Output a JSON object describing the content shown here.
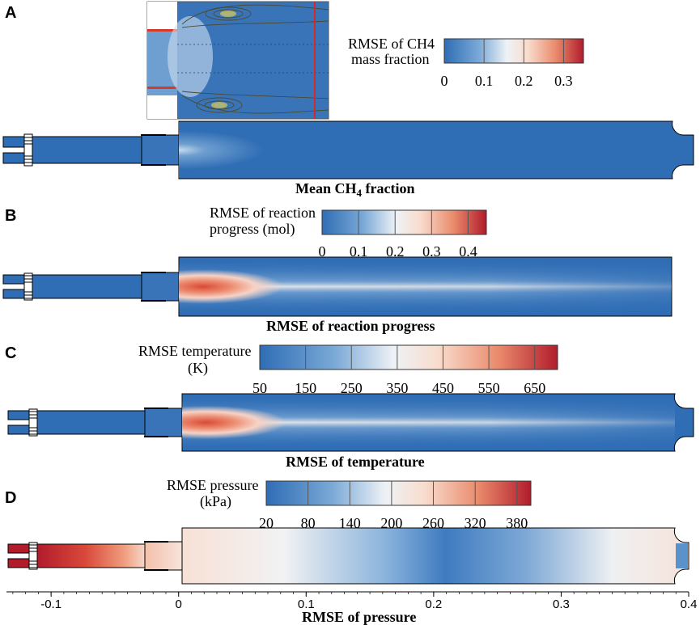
{
  "panels": [
    {
      "letter": "A",
      "colorbar_title_lines": [
        "RMSE of CH4",
        "mass fraction"
      ],
      "colorbar_ticks": [
        "0",
        "0.1",
        "0.2",
        "0.3"
      ],
      "colorbar_tick_values": [
        0,
        0.1,
        0.2,
        0.3
      ],
      "colorbar_range": [
        0,
        0.35
      ],
      "caption_main": "Mean CH",
      "caption_sub": "4",
      "caption_tail": " fraction"
    },
    {
      "letter": "B",
      "colorbar_title_lines": [
        "RMSE of reaction",
        "progress (mol)"
      ],
      "colorbar_ticks": [
        "0",
        "0.1",
        "0.2",
        "0.3",
        "0.4"
      ],
      "colorbar_tick_values": [
        0,
        0.1,
        0.2,
        0.3,
        0.4
      ],
      "colorbar_range": [
        0,
        0.45
      ],
      "caption": "RMSE of reaction progress"
    },
    {
      "letter": "C",
      "colorbar_title_lines": [
        "RMSE temperature",
        "(K)"
      ],
      "colorbar_ticks": [
        "50",
        "150",
        "250",
        "350",
        "450",
        "550",
        "650"
      ],
      "colorbar_tick_values": [
        50,
        150,
        250,
        350,
        450,
        550,
        650
      ],
      "colorbar_range": [
        50,
        700
      ],
      "caption": "RMSE of temperature"
    },
    {
      "letter": "D",
      "colorbar_title_lines": [
        "RMSE pressure",
        "(kPa)"
      ],
      "colorbar_ticks": [
        "20",
        "80",
        "140",
        "200",
        "260",
        "320",
        "380"
      ],
      "colorbar_tick_values": [
        20,
        80,
        140,
        200,
        260,
        320,
        380
      ],
      "colorbar_range": [
        20,
        400
      ],
      "caption": "RMSE of pressure"
    }
  ],
  "x_axis": {
    "ticks": [
      "-0.1",
      "0",
      "0.1",
      "0.2",
      "0.3",
      "0.4"
    ],
    "tick_values": [
      -0.1,
      0,
      0.1,
      0.2,
      0.3,
      0.4
    ],
    "range": [
      -0.135,
      0.4
    ]
  },
  "colors": {
    "blue": "#2f6db5",
    "light_blue": "#a9c9e6",
    "white": "#f4f1ee",
    "pink": "#f3b49c",
    "orange": "#e2614a",
    "red": "#b11c2c",
    "inset_bg": "#2f6db5",
    "inset_line": "#d12a2a"
  }
}
